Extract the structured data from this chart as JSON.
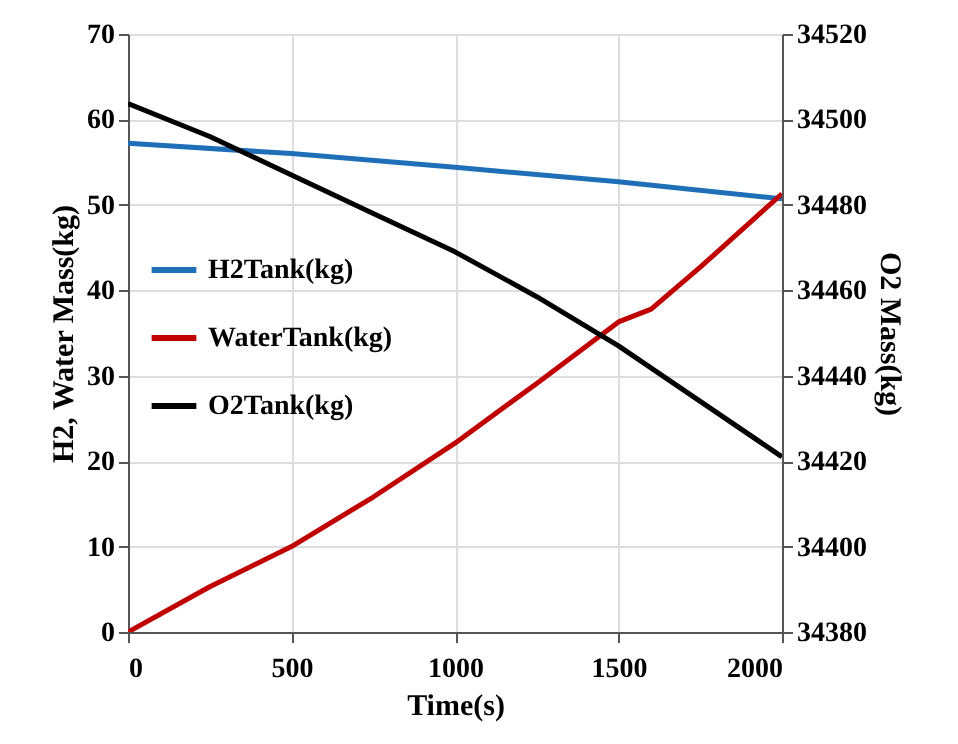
{
  "chart_data": {
    "type": "line",
    "xlabel": "Time(s)",
    "ylabel": "H2, Water Mass(kg)",
    "y2label": "O2 Mass(kg)",
    "x": [
      0,
      250,
      500,
      750,
      1000,
      1250,
      1500,
      1600,
      1750,
      2000
    ],
    "series": [
      {
        "name": "H2Tank(kg)",
        "color": "#1f6fb8",
        "x": [
          0,
          500,
          1000,
          1500,
          2000
        ],
        "values": [
          57.2,
          56.0,
          54.4,
          52.7,
          50.7
        ]
      },
      {
        "name": "WaterTank(kg)",
        "color": "#c00000",
        "values": [
          0,
          5.3,
          10.0,
          15.8,
          22.1,
          29.1,
          36.3,
          37.8,
          42.7,
          51.3
        ]
      },
      {
        "name": "O2Tank(kg)",
        "color": "#000000",
        "axis": "y2",
        "x": [
          0,
          250,
          500,
          750,
          1000,
          1250,
          1500,
          1750,
          2000
        ],
        "values": [
          34503.7,
          34496,
          34487,
          34478,
          34469,
          34458.5,
          34447,
          34434,
          34421
        ]
      }
    ],
    "xlim": [
      0,
      2000
    ],
    "xticks": [
      0,
      500,
      1000,
      1500,
      2000
    ],
    "ylim": [
      0,
      70
    ],
    "yticks": [
      0,
      10,
      20,
      30,
      40,
      50,
      60,
      70
    ],
    "y2lim": [
      34380,
      34520
    ],
    "y2ticks": [
      34380,
      34400,
      34420,
      34440,
      34460,
      34480,
      34500,
      34520
    ],
    "grid": true,
    "legend": "left"
  }
}
